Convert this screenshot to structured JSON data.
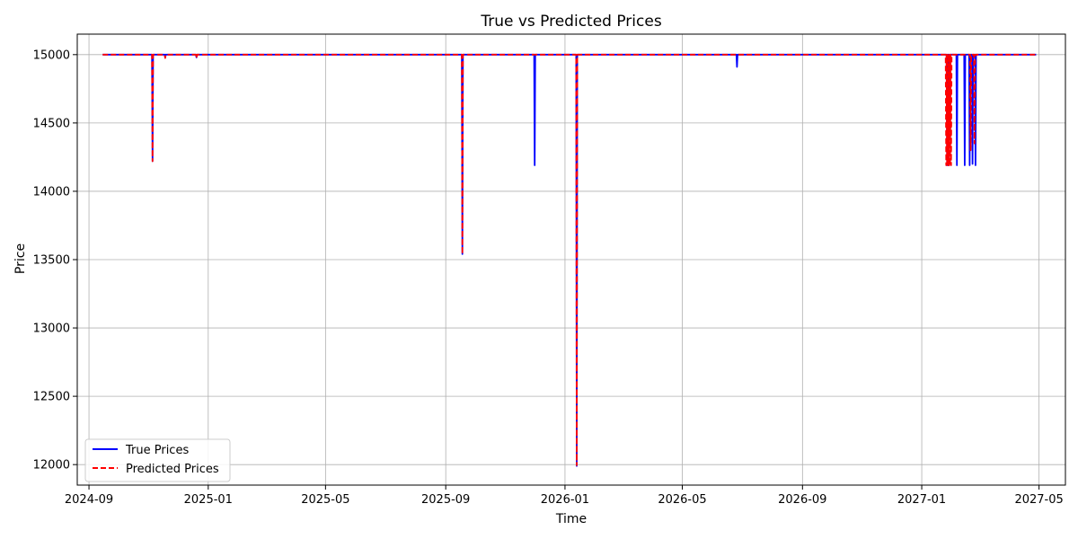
{
  "chart_data": {
    "type": "line",
    "title": "True vs Predicted Prices",
    "xlabel": "Time",
    "ylabel": "Price",
    "xlim": [
      "2024-08-20",
      "2027-05-28"
    ],
    "ylim": [
      11850,
      15150
    ],
    "grid": true,
    "legend_position": "lower-left",
    "x_ticks": [
      "2024-09",
      "2025-01",
      "2025-05",
      "2025-09",
      "2026-01",
      "2026-05",
      "2026-09",
      "2027-01",
      "2027-05"
    ],
    "y_ticks": [
      12000,
      12500,
      13000,
      13500,
      14000,
      14500,
      15000
    ],
    "baseline": 15000,
    "x_range": [
      "2024-09-15",
      "2027-04-28"
    ],
    "series": [
      {
        "name": "True Prices",
        "color": "#0000ff",
        "dash": "solid",
        "spikes": [
          {
            "date": "2024-11-05",
            "value": 14220
          },
          {
            "date": "2024-11-18",
            "value": 14980
          },
          {
            "date": "2024-12-20",
            "value": 14980
          },
          {
            "date": "2025-09-18",
            "value": 13540
          },
          {
            "date": "2025-12-01",
            "value": 14190
          },
          {
            "date": "2026-01-13",
            "value": 11990
          },
          {
            "date": "2026-06-26",
            "value": 14910
          },
          {
            "date": "2027-01-27",
            "value": 14190
          },
          {
            "date": "2027-01-29",
            "value": 14190
          },
          {
            "date": "2027-02-06",
            "value": 14190
          },
          {
            "date": "2027-02-14",
            "value": 14190
          },
          {
            "date": "2027-02-19",
            "value": 14190
          },
          {
            "date": "2027-02-22",
            "value": 14200
          },
          {
            "date": "2027-02-25",
            "value": 14190
          }
        ]
      },
      {
        "name": "Predicted Prices",
        "color": "#ff0000",
        "dash": "dashed",
        "spikes": [
          {
            "date": "2024-11-05",
            "value": 14220
          },
          {
            "date": "2024-11-18",
            "value": 14975
          },
          {
            "date": "2024-12-20",
            "value": 14975
          },
          {
            "date": "2025-09-18",
            "value": 13540
          },
          {
            "date": "2026-01-13",
            "value": 11995
          },
          {
            "date": "2027-01-26",
            "value": 14190
          },
          {
            "date": "2027-01-27",
            "value": 14190
          },
          {
            "date": "2027-01-28",
            "value": 14190
          },
          {
            "date": "2027-01-29",
            "value": 14190
          },
          {
            "date": "2027-01-30",
            "value": 14190
          },
          {
            "date": "2027-01-31",
            "value": 14190
          },
          {
            "date": "2027-02-20",
            "value": 14300
          },
          {
            "date": "2027-02-24",
            "value": 14350
          }
        ]
      }
    ]
  }
}
